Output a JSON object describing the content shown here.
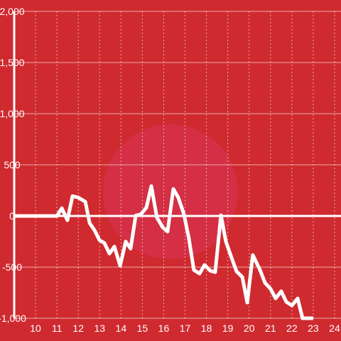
{
  "chart_data": {
    "type": "line",
    "x": [
      9.0,
      11.0,
      11.23,
      11.49,
      11.73,
      11.99,
      12.33,
      12.53,
      12.76,
      12.99,
      13.22,
      13.46,
      13.69,
      13.96,
      14.22,
      14.45,
      14.69,
      14.92,
      15.19,
      15.42,
      15.68,
      15.95,
      16.18,
      16.45,
      16.68,
      16.95,
      17.18,
      17.41,
      17.68,
      17.91,
      18.18,
      18.41,
      18.68,
      18.91,
      19.18,
      19.41,
      19.68,
      19.91,
      20.17,
      20.51,
      20.74,
      21.01,
      21.24,
      21.5,
      21.74,
      22.0,
      22.27,
      22.5,
      22.77,
      23.0
    ],
    "values": [
      0,
      0,
      76,
      -42,
      194,
      181,
      139,
      -69,
      -139,
      -236,
      -264,
      -368,
      -299,
      -486,
      -250,
      -319,
      5,
      14,
      83,
      292,
      -14,
      -111,
      -153,
      264,
      181,
      14,
      -222,
      -528,
      -563,
      -479,
      -535,
      -549,
      7,
      -250,
      -410,
      -542,
      -597,
      -847,
      -382,
      -528,
      -653,
      -715,
      -806,
      -736,
      -840,
      -875,
      -806,
      -1000,
      -1000,
      -1000
    ],
    "color": "#ffffff",
    "xlim": [
      9,
      24.3
    ],
    "xticks": [
      10,
      11,
      12,
      13,
      14,
      15,
      16,
      17,
      18,
      19,
      20,
      21,
      22,
      23,
      24
    ],
    "ylim": [
      -1000,
      2000
    ],
    "yticks": [
      {
        "value": -1000,
        "label": "-1,000"
      },
      -500,
      0,
      500,
      {
        "value": 1000,
        "label": "1,000"
      },
      {
        "value": 1500,
        "label": "1,500"
      },
      {
        "value": 2000,
        "label": "2,000"
      }
    ],
    "grid": true
  }
}
